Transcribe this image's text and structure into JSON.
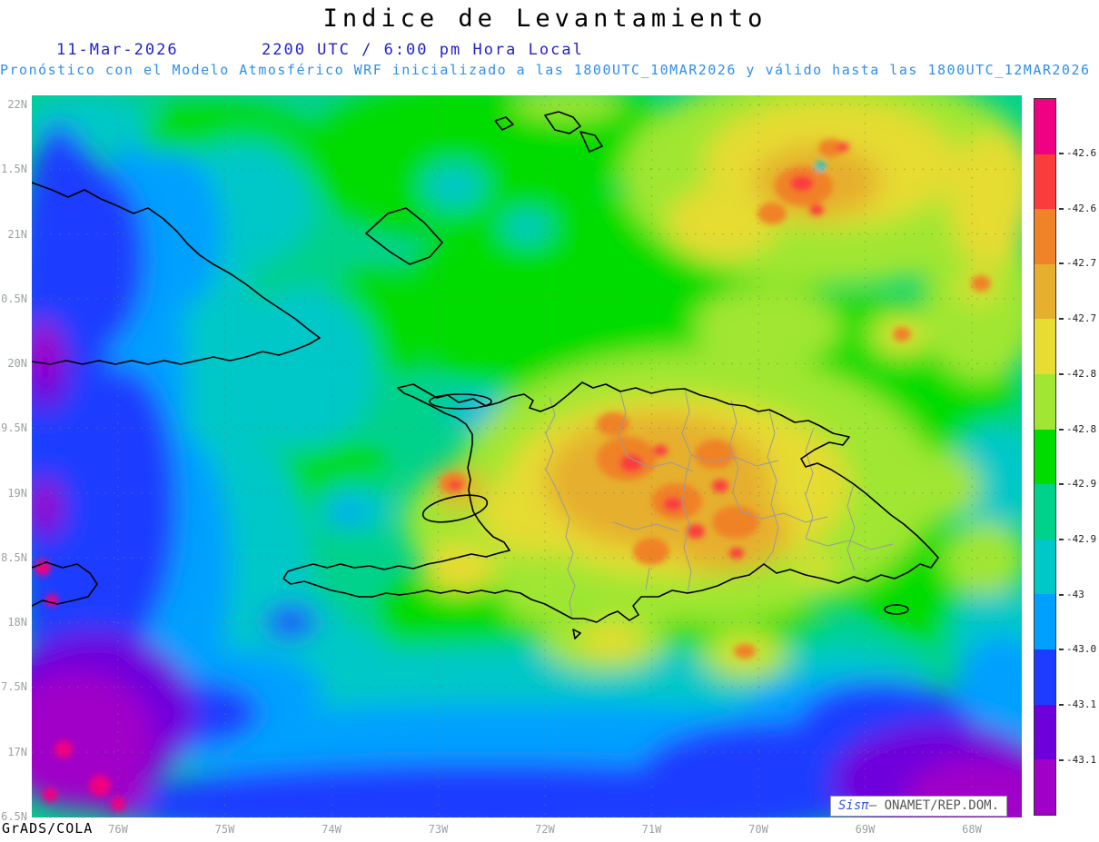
{
  "title": "Indice de Levantamiento",
  "header": {
    "date": "11-Mar-2026",
    "time": "2200 UTC / 6:00 pm Hora Local",
    "subtitle": "Pronóstico con el Modelo Atmosférico WRF inicializado a las 1800UTC_10MAR2026 y válido hasta las 1800UTC_12MAR2026"
  },
  "axes": {
    "lat_labels": [
      "22N",
      "1.5N",
      "21N",
      "0.5N",
      "20N",
      "9.5N",
      "19N",
      "8.5N",
      "18N",
      "7.5N",
      "17N",
      "6.5N"
    ],
    "lon_labels": [
      "76W",
      "75W",
      "74W",
      "73W",
      "72W",
      "71W",
      "70W",
      "69W",
      "68W"
    ]
  },
  "colorbar": {
    "tick_labels": [
      "-42.6",
      "-42.6",
      "-42.7",
      "-42.7",
      "-42.8",
      "-42.8",
      "-42.9",
      "-42.9",
      "-43",
      "-43.0",
      "-43.1",
      "-43.1"
    ],
    "colors": [
      "#f00082",
      "#fa3c3c",
      "#f08228",
      "#e6af2d",
      "#e6dc32",
      "#a0e632",
      "#00dc00",
      "#00d28c",
      "#00c8c8",
      "#00a0ff",
      "#1e3cff",
      "#6e00dc",
      "#a000c8"
    ]
  },
  "footer": {
    "credit": "GrADS/COLA",
    "watermark_prefix": "Sisπ",
    "watermark_suffix": "– ONAMET/REP.DOM."
  },
  "theme": {
    "title_color": "#000000",
    "date_color": "#2121cc",
    "subtitle_color": "#2e8fee",
    "axis_label_color": "#9aa2a2"
  }
}
